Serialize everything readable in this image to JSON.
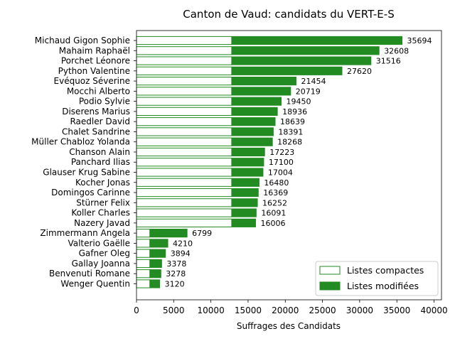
{
  "chart_data": {
    "type": "bar",
    "orientation": "horizontal",
    "stacked": true,
    "title": "Canton de Vaud: candidats du VERT-E-S",
    "xlabel": "Suffrages des Candidats",
    "ylabel": "",
    "xlim": [
      0,
      41000
    ],
    "xticks": [
      "0",
      "5000",
      "10000",
      "15000",
      "20000",
      "25000",
      "30000",
      "35000",
      "40000"
    ],
    "grid": false,
    "legend_position": "bottom-right",
    "colors": {
      "modified": "#228b22",
      "edge": "#228b22",
      "compact_fill": "#ffffff"
    },
    "categories": [
      "Michaud Gigon Sophie",
      "Mahaim Raphaël",
      "Porchet Léonore",
      "Python Valentine",
      "Evéquoz Séverine",
      "Mocchi Alberto",
      "Podio Sylvie",
      "Diserens Marius",
      "Raedler David",
      "Chalet Sandrine",
      "Müller Chabloz Yolanda",
      "Chanson Alain",
      "Panchard Ilias",
      "Glauser Krug Sabine",
      "Kocher Jonas",
      "Domingos Carinne",
      "Stürner Felix",
      "Koller Charles",
      "Nazery Javad",
      "Zimmermann Angela",
      "Valterio Gaëlle",
      "Gafner Oleg",
      "Gallay Joanna",
      "Benvenuti Romane",
      "Wenger Quentin"
    ],
    "series": [
      {
        "name": "Listes compactes",
        "values": [
          12800,
          12800,
          12800,
          12800,
          12800,
          12800,
          12800,
          12800,
          12800,
          12800,
          12800,
          12800,
          12800,
          12800,
          12800,
          12800,
          12800,
          12800,
          12800,
          1800,
          1800,
          1800,
          1800,
          1800,
          1800
        ]
      },
      {
        "name": "Listes modifiées",
        "values": [
          22894,
          19808,
          18716,
          14820,
          8654,
          7919,
          6650,
          6136,
          5839,
          5591,
          5468,
          4423,
          4300,
          4204,
          3680,
          3569,
          3452,
          3291,
          3206,
          4999,
          2410,
          2094,
          1578,
          1478,
          1320
        ]
      }
    ],
    "totals": [
      "35694",
      "32608",
      "31516",
      "27620",
      "21454",
      "20719",
      "19450",
      "18936",
      "18639",
      "18391",
      "18268",
      "17223",
      "17100",
      "17004",
      "16480",
      "16369",
      "16252",
      "16091",
      "16006",
      "6799",
      "4210",
      "3894",
      "3378",
      "3278",
      "3120"
    ]
  }
}
